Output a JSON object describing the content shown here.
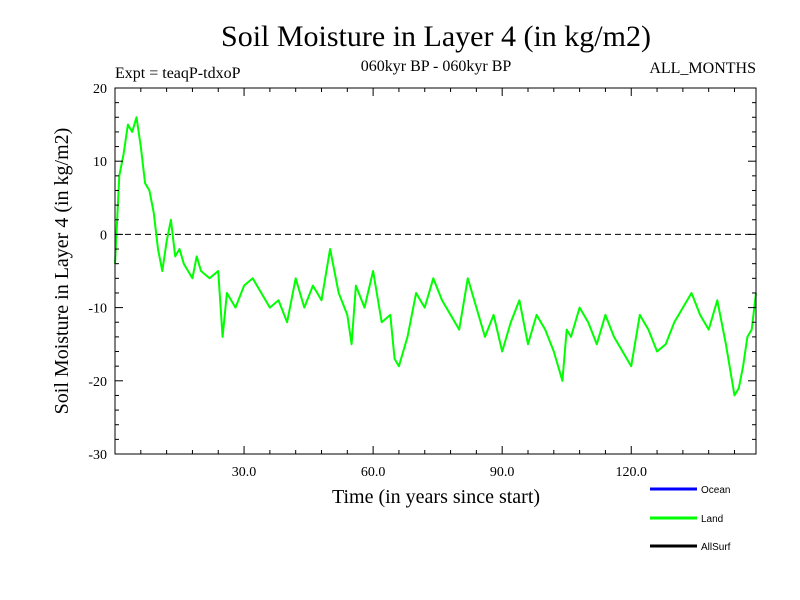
{
  "chart_data": {
    "type": "line",
    "title": "Soil Moisture in Layer 4 (in kg/m2)",
    "subtitle_left": "Expt = teaqP-tdxoP",
    "subtitle_center": "060kyr BP - 060kyr BP",
    "subtitle_right": "ALL_MONTHS",
    "xlabel": "Time (in years since start)",
    "ylabel": "Soil Moisture in Layer 4 (in kg/m2)",
    "xlim": [
      0,
      149
    ],
    "ylim": [
      -30,
      20
    ],
    "x_ticks": [
      30,
      60,
      90,
      120
    ],
    "x_tick_labels": [
      "30.0",
      "60.0",
      "90.0",
      "120.0"
    ],
    "y_ticks": [
      -30,
      -20,
      -10,
      0,
      10,
      20
    ],
    "y_tick_labels": [
      "-30",
      "-20",
      "-10",
      "0",
      "10",
      "20"
    ],
    "reference_line": 0,
    "colors": {
      "ocean": "#0000ff",
      "land": "#00ff00",
      "allsurf": "#000000",
      "axis": "#000000"
    },
    "legend": [
      {
        "name": "Ocean",
        "color": "#0000ff"
      },
      {
        "name": "Land",
        "color": "#00ff00"
      },
      {
        "name": "AllSurf",
        "color": "#000000"
      }
    ],
    "series": [
      {
        "name": "Land",
        "color": "#00ff00",
        "x": [
          0,
          1,
          2,
          3,
          4,
          5,
          6,
          7,
          8,
          9,
          10,
          11,
          12,
          13,
          14,
          15,
          16,
          17,
          18,
          19,
          20,
          22,
          24,
          25,
          26,
          28,
          30,
          32,
          34,
          36,
          38,
          40,
          42,
          44,
          46,
          48,
          50,
          52,
          54,
          55,
          56,
          58,
          60,
          62,
          64,
          65,
          66,
          68,
          70,
          72,
          74,
          76,
          78,
          80,
          82,
          84,
          86,
          88,
          90,
          92,
          94,
          96,
          98,
          100,
          102,
          104,
          105,
          106,
          108,
          110,
          112,
          114,
          116,
          118,
          120,
          122,
          124,
          126,
          128,
          130,
          132,
          134,
          136,
          138,
          140,
          142,
          144,
          145,
          146,
          147,
          148,
          149
        ],
        "y": [
          -4,
          8,
          11,
          15,
          14,
          16,
          12,
          7,
          6,
          3,
          -2,
          -5,
          -1,
          2,
          -3,
          -2,
          -4,
          -5,
          -6,
          -3,
          -5,
          -6,
          -5,
          -14,
          -8,
          -10,
          -7,
          -6,
          -8,
          -10,
          -9,
          -12,
          -6,
          -10,
          -7,
          -9,
          -2,
          -8,
          -11,
          -15,
          -7,
          -10,
          -5,
          -12,
          -11,
          -17,
          -18,
          -14,
          -8,
          -10,
          -6,
          -9,
          -11,
          -13,
          -6,
          -10,
          -14,
          -11,
          -16,
          -12,
          -9,
          -15,
          -11,
          -13,
          -16,
          -20,
          -13,
          -14,
          -10,
          -12,
          -15,
          -11,
          -14,
          -16,
          -18,
          -11,
          -13,
          -16,
          -15,
          -12,
          -10,
          -8,
          -11,
          -13,
          -9,
          -15,
          -22,
          -21,
          -18,
          -14,
          -13,
          -8
        ]
      }
    ]
  }
}
